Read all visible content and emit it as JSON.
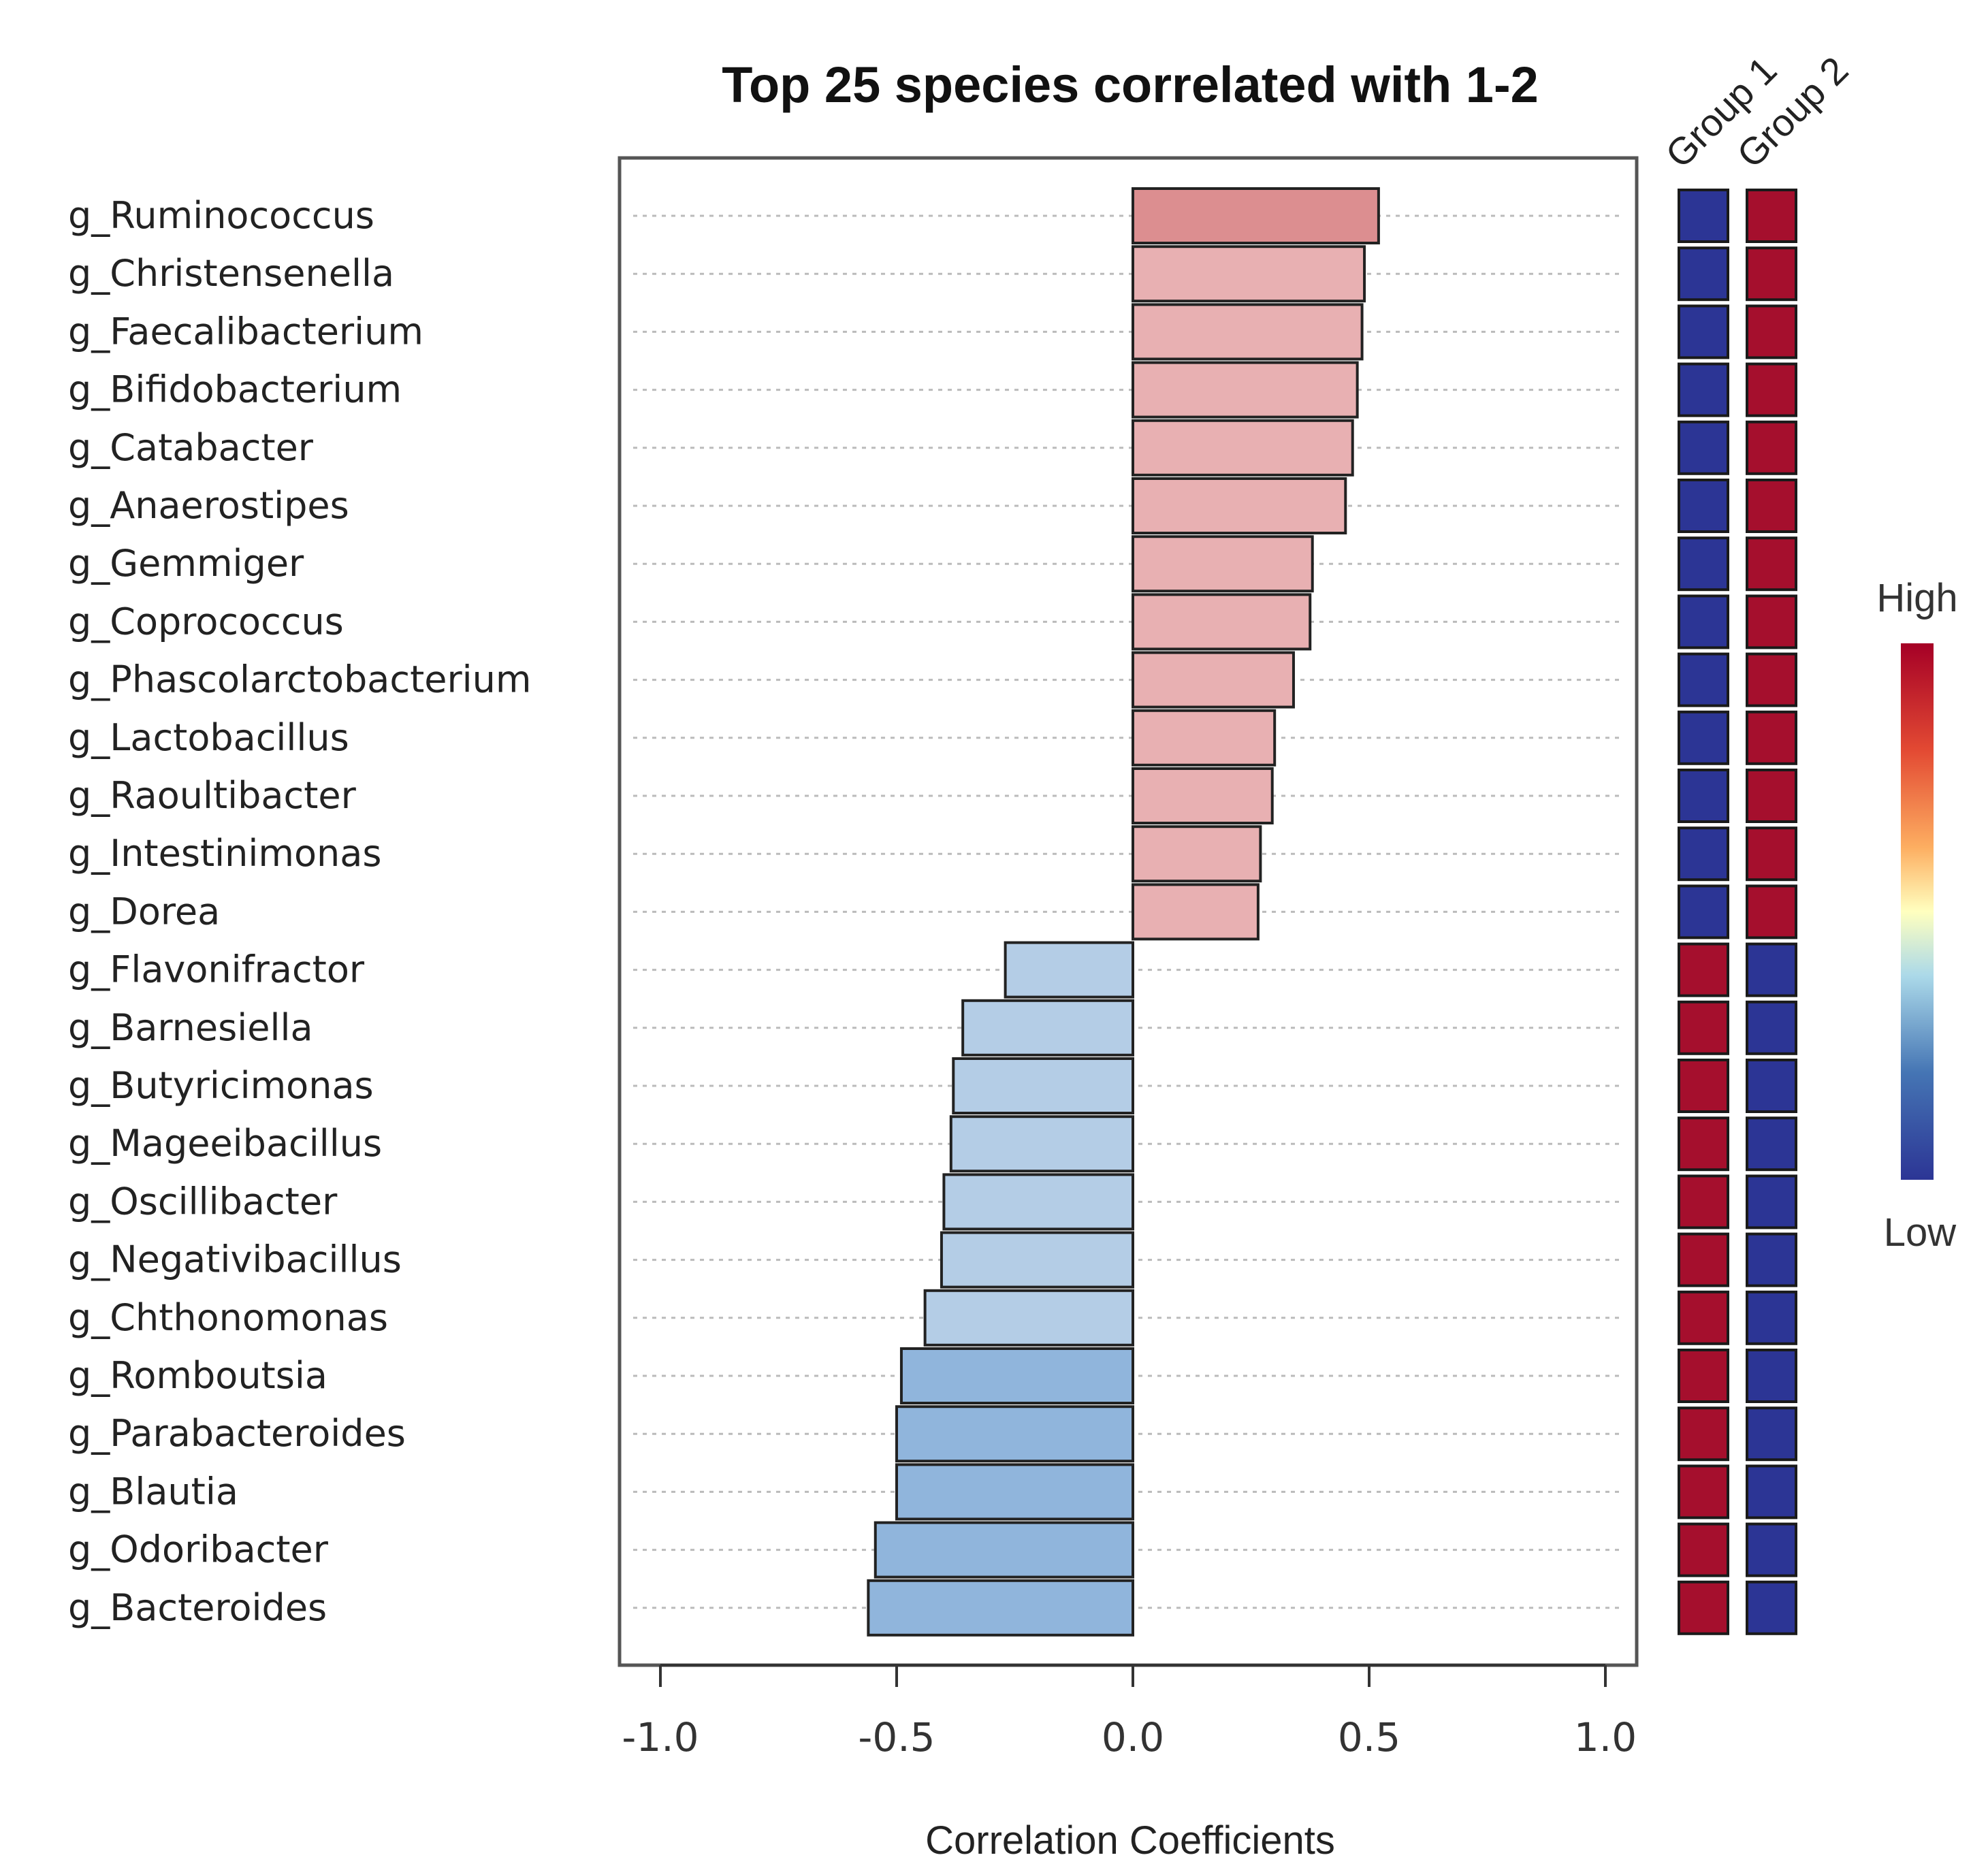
{
  "chart_data": {
    "type": "bar",
    "orientation": "horizontal",
    "title": "Top 25 species correlated with 1-2",
    "xlabel": "Correlation Coefficients",
    "xlim": [
      -1.1,
      1.1
    ],
    "xticks": [
      -1.0,
      -0.5,
      0.0,
      0.5,
      1.0
    ],
    "xtick_labels": [
      "-1.0",
      "-0.5",
      "0.0",
      "0.5",
      "1.0"
    ],
    "grid": "dotted horizontal",
    "categories": [
      "g_Ruminococcus",
      "g_Christensenella",
      "g_Faecalibacterium",
      "g_Bifidobacterium",
      "g_Catabacter",
      "g_Anaerostipes",
      "g_Gemmiger",
      "g_Coprococcus",
      "g_Phascolarctobacterium",
      "g_Lactobacillus",
      "g_Raoultibacter",
      "g_Intestinimonas",
      "g_Dorea",
      "g_Flavonifractor",
      "g_Barnesiella",
      "g_Butyricimonas",
      "g_Mageeibacillus",
      "g_Oscillibacter",
      "g_Negativibacillus",
      "g_Chthonomonas",
      "g_Romboutsia",
      "g_Parabacteroides",
      "g_Blautia",
      "g_Odoribacter",
      "g_Bacteroides"
    ],
    "values": [
      0.52,
      0.49,
      0.485,
      0.475,
      0.465,
      0.45,
      0.38,
      0.375,
      0.34,
      0.3,
      0.295,
      0.27,
      0.265,
      -0.27,
      -0.36,
      -0.38,
      -0.385,
      -0.4,
      -0.405,
      -0.44,
      -0.49,
      -0.5,
      -0.5,
      -0.545,
      -0.56
    ],
    "heatmap": {
      "columns": [
        "Group 1",
        "Group 2"
      ],
      "values": [
        [
          "Low",
          "High"
        ],
        [
          "Low",
          "High"
        ],
        [
          "Low",
          "High"
        ],
        [
          "Low",
          "High"
        ],
        [
          "Low",
          "High"
        ],
        [
          "Low",
          "High"
        ],
        [
          "Low",
          "High"
        ],
        [
          "Low",
          "High"
        ],
        [
          "Low",
          "High"
        ],
        [
          "Low",
          "High"
        ],
        [
          "Low",
          "High"
        ],
        [
          "Low",
          "High"
        ],
        [
          "Low",
          "High"
        ],
        [
          "High",
          "Low"
        ],
        [
          "High",
          "Low"
        ],
        [
          "High",
          "Low"
        ],
        [
          "High",
          "Low"
        ],
        [
          "High",
          "Low"
        ],
        [
          "High",
          "Low"
        ],
        [
          "High",
          "Low"
        ],
        [
          "High",
          "Low"
        ],
        [
          "High",
          "Low"
        ],
        [
          "High",
          "Low"
        ],
        [
          "High",
          "Low"
        ],
        [
          "High",
          "Low"
        ]
      ]
    },
    "legend": {
      "high_label": "High",
      "low_label": "Low",
      "placement": "right"
    },
    "colors": {
      "positive_bar": "#e8b0b2",
      "positive_bar_strong": "#dc8e90",
      "negative_bar_light": "#b4cde6",
      "negative_bar_mid": "#a9c5e3",
      "negative_bar_strong": "#90b5dc",
      "heat_high": "#a50f2d",
      "heat_low": "#2c3595",
      "frame": "#555555",
      "grid": "#bbbbbb"
    }
  }
}
